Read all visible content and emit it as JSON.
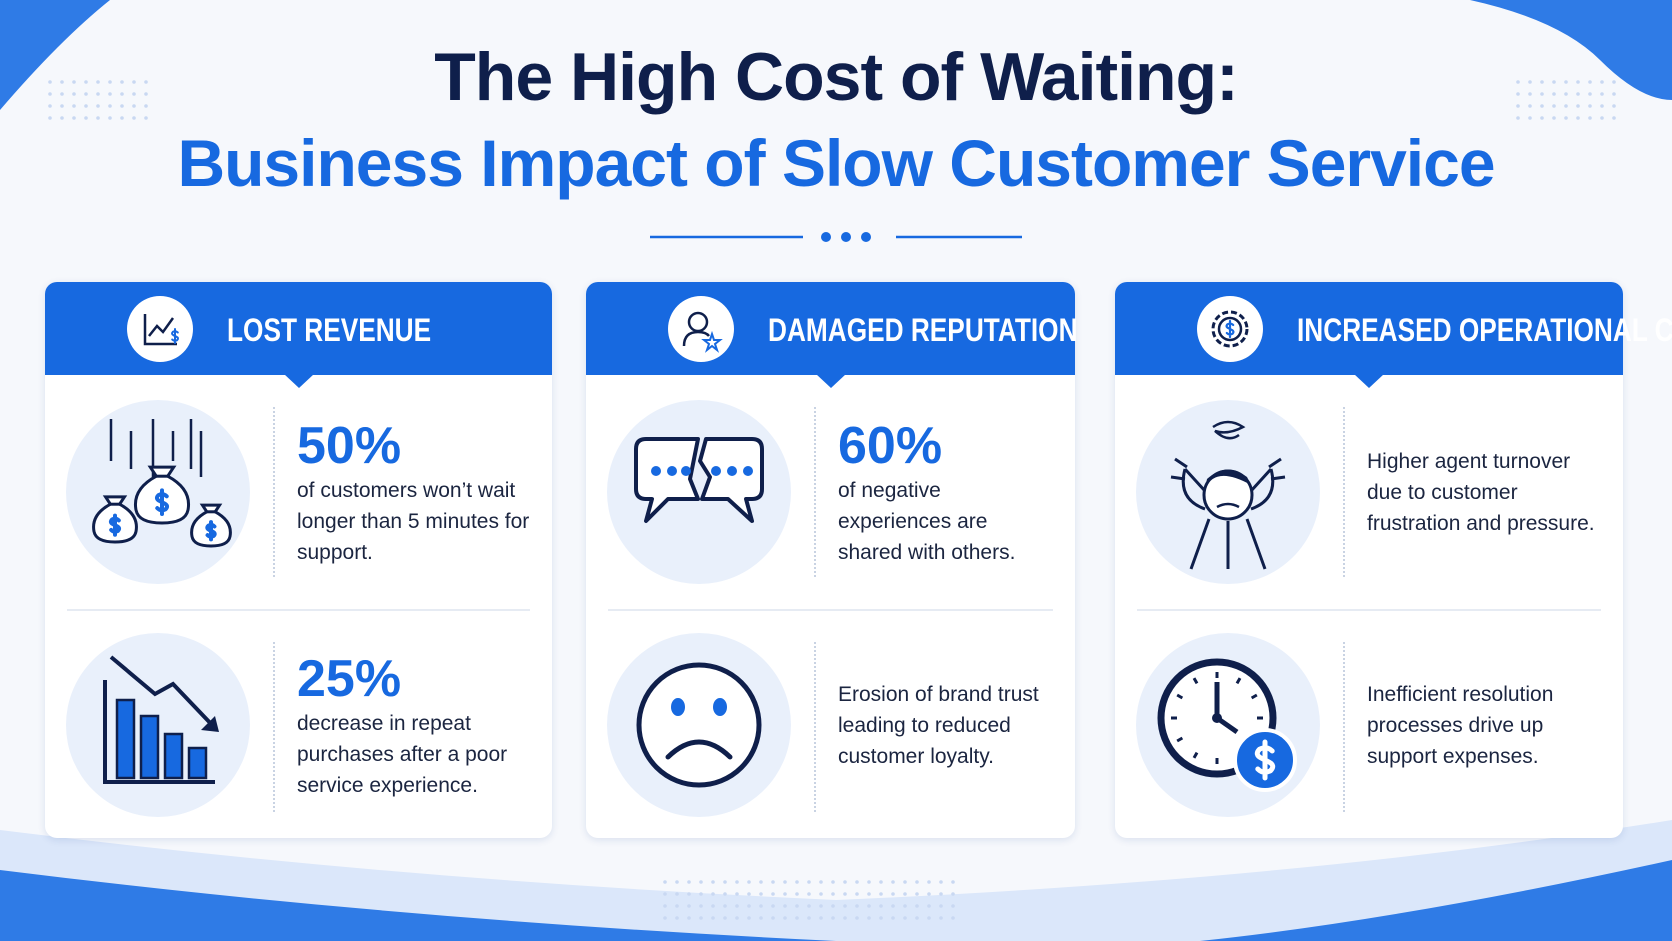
{
  "header": {
    "title": "The High Cost of Waiting:",
    "subtitle": "Business Impact of Slow Customer Service"
  },
  "cards": [
    {
      "title": "LOST REVENUE",
      "items": [
        {
          "stat": "50%",
          "text": "of customers won’t wait longer than 5 minutes for support."
        },
        {
          "stat": "25%",
          "text": "decrease in repeat purchases after a poor service experience."
        }
      ]
    },
    {
      "title": "DAMAGED REPUTATION",
      "items": [
        {
          "stat": "60%",
          "text": "of negative experiences are shared with others."
        },
        {
          "text": "Erosion of brand trust leading to reduced customer loyalty."
        }
      ]
    },
    {
      "title": "INCREASED OPERATIONAL COSTS",
      "items": [
        {
          "text": "Higher agent turnover due to customer frustration and pressure."
        },
        {
          "text": "Inefficient resolution processes drive up support expenses."
        }
      ]
    }
  ]
}
